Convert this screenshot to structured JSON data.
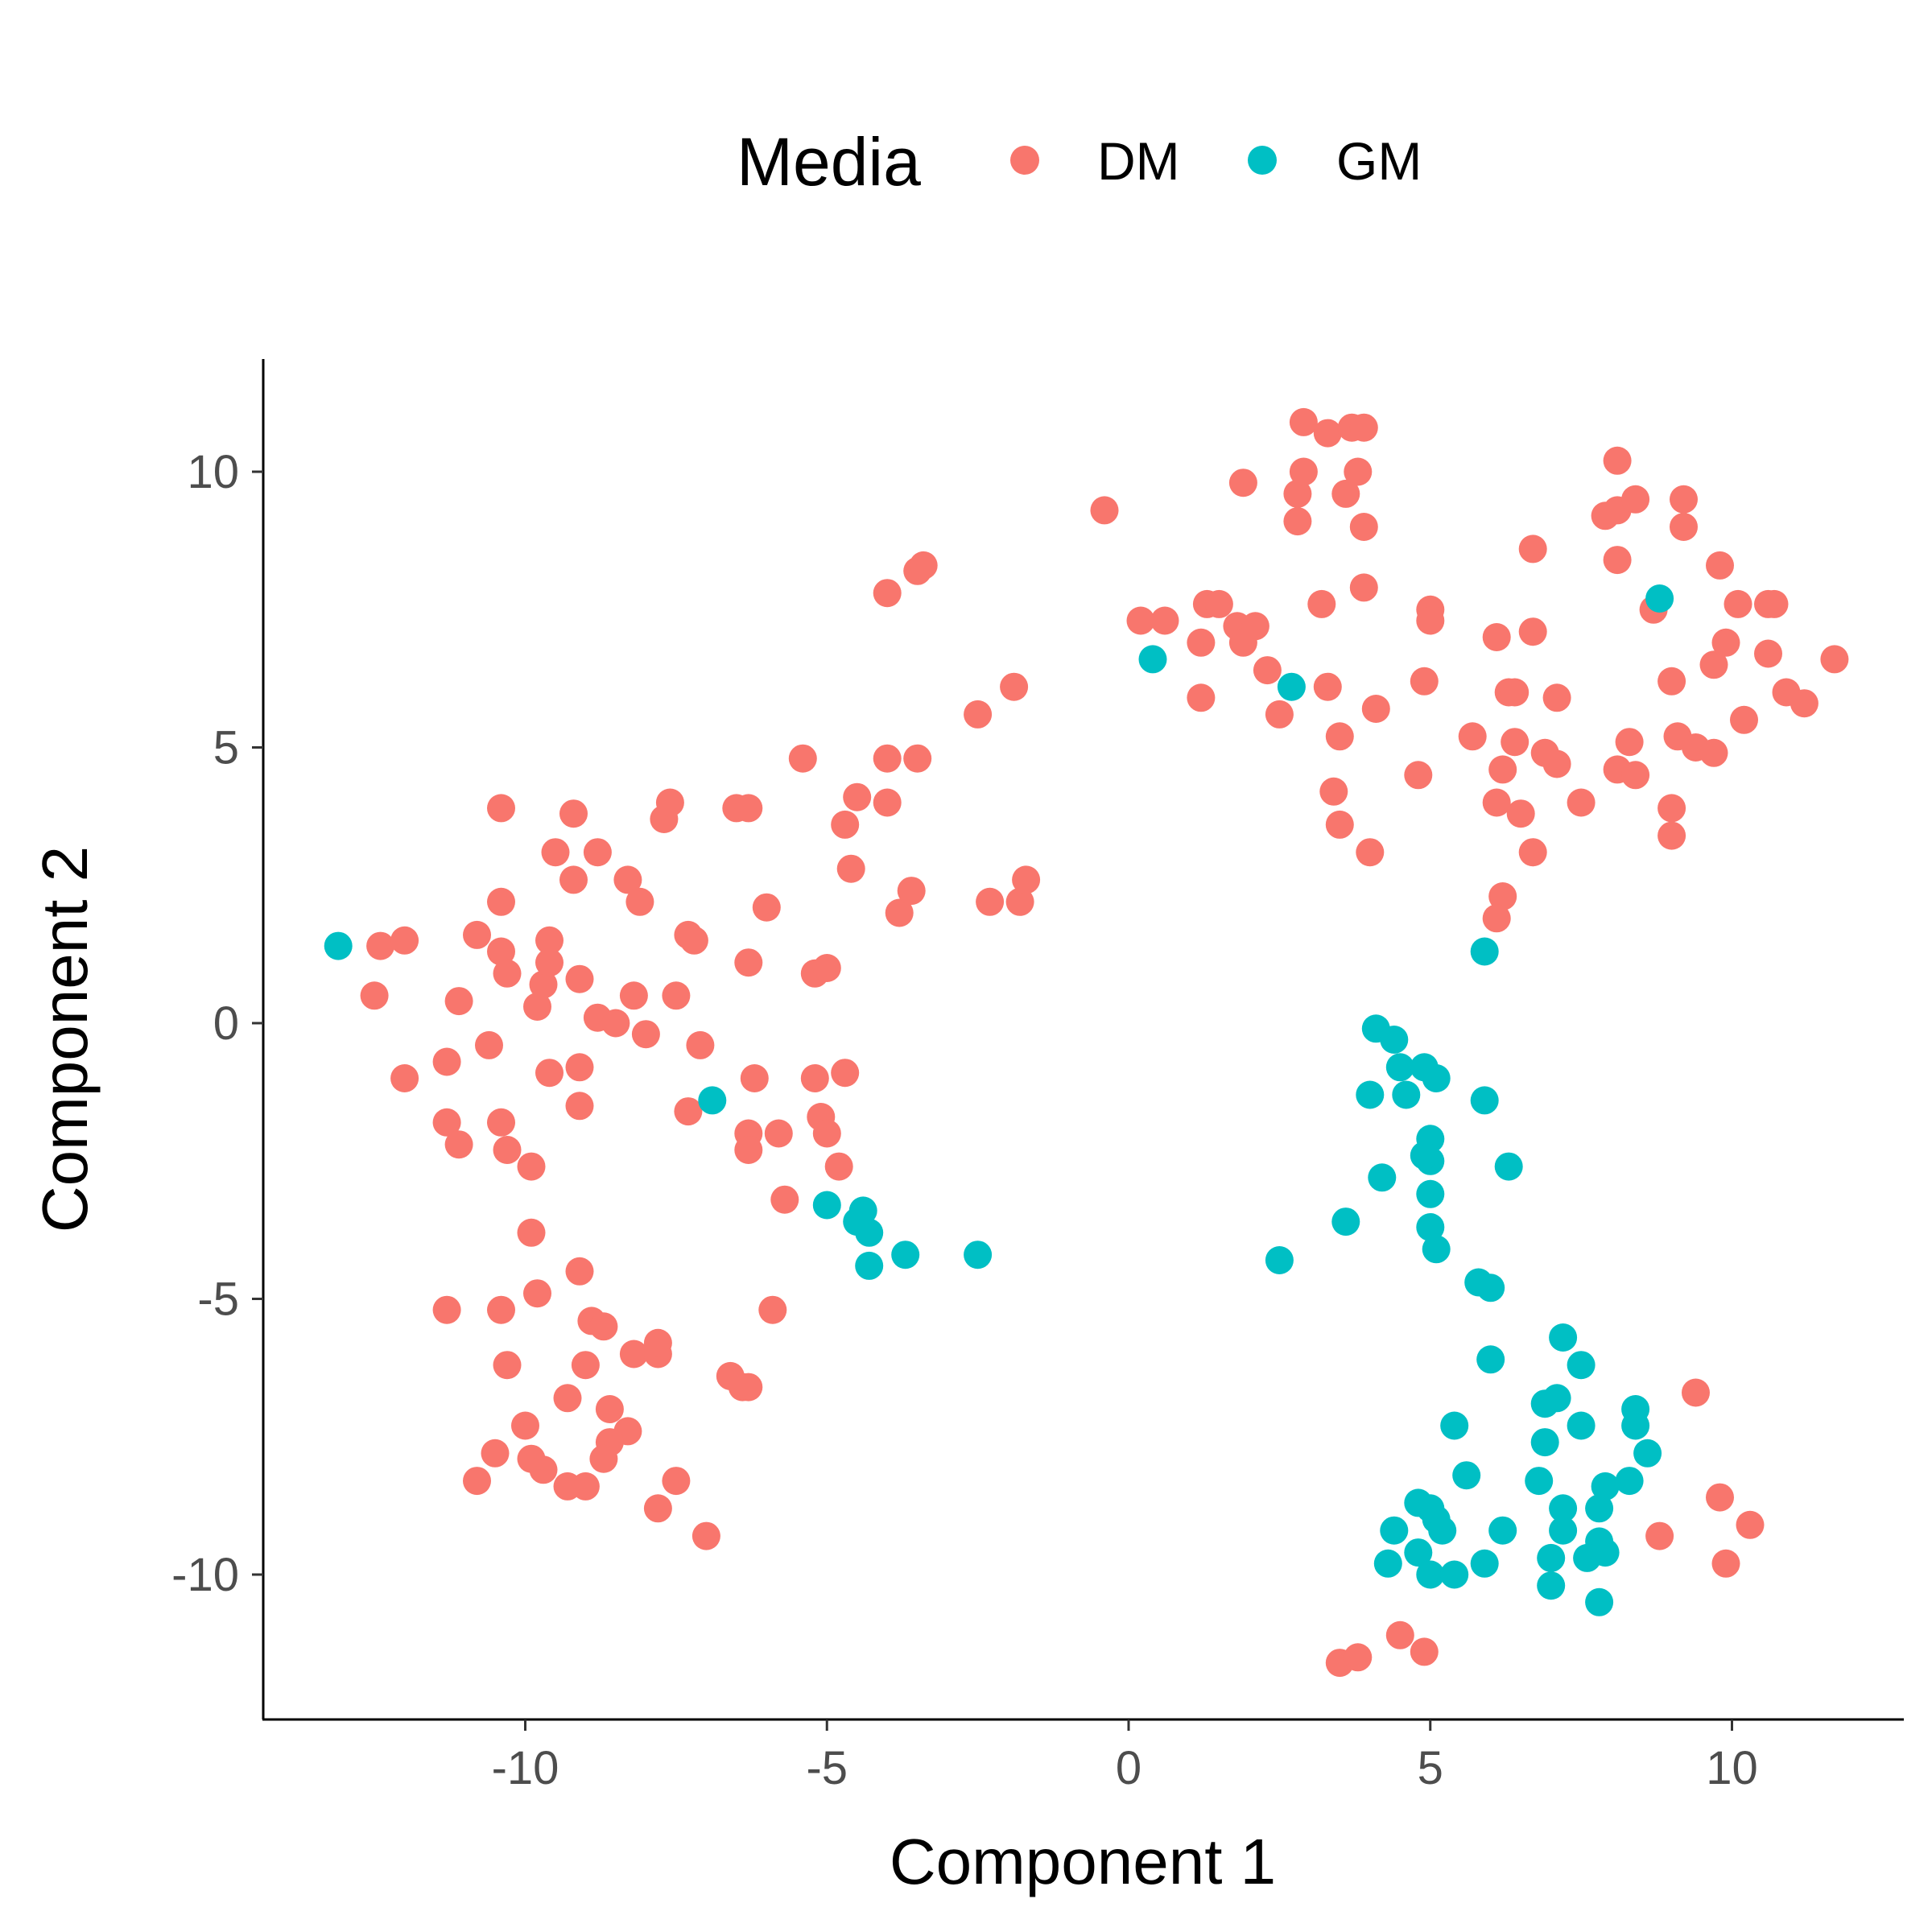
{
  "chart_data": {
    "type": "scatter",
    "title": "",
    "xlabel": "Component 1",
    "ylabel": "Component 2",
    "xlim": [
      -14.5,
      13
    ],
    "ylim": [
      -12.6,
      12.1
    ],
    "x_ticks": [
      -10,
      -5,
      0,
      5,
      10
    ],
    "y_ticks": [
      -10,
      -5,
      0,
      5,
      10
    ],
    "x_tick_labels": [
      "-10",
      "-5",
      "0",
      "5",
      "10"
    ],
    "y_tick_labels": [
      "-10",
      "-5",
      "0",
      "5",
      "10"
    ],
    "grid": false,
    "legend": {
      "title": "Media",
      "placement": "top"
    },
    "series": [
      {
        "name": "DM",
        "color": "#F8766D",
        "points": [
          [
            -12.4,
            1.4
          ],
          [
            -12.0,
            1.5
          ],
          [
            -12.5,
            0.5
          ],
          [
            -12.0,
            -1.0
          ],
          [
            -11.3,
            -0.7
          ],
          [
            -11.1,
            0.4
          ],
          [
            -11.3,
            -1.8
          ],
          [
            -11.1,
            -2.2
          ],
          [
            -10.8,
            1.6
          ],
          [
            -10.4,
            1.3
          ],
          [
            -10.3,
            0.9
          ],
          [
            -10.6,
            -0.4
          ],
          [
            -10.4,
            -1.8
          ],
          [
            -10.3,
            -2.3
          ],
          [
            -10.4,
            3.9
          ],
          [
            -10.4,
            2.2
          ],
          [
            -9.8,
            0.3
          ],
          [
            -9.7,
            0.7
          ],
          [
            -9.6,
            1.1
          ],
          [
            -9.6,
            1.5
          ],
          [
            -9.6,
            -0.9
          ],
          [
            -9.9,
            -2.6
          ],
          [
            -9.5,
            3.1
          ],
          [
            -9.2,
            3.8
          ],
          [
            -9.2,
            2.6
          ],
          [
            -9.1,
            0.8
          ],
          [
            -9.1,
            -0.8
          ],
          [
            -9.1,
            -1.5
          ],
          [
            -8.8,
            0.1
          ],
          [
            -8.8,
            3.1
          ],
          [
            -8.5,
            0.0
          ],
          [
            -8.3,
            2.6
          ],
          [
            -8.1,
            2.2
          ],
          [
            -8.2,
            0.5
          ],
          [
            -8.0,
            -0.2
          ],
          [
            -7.7,
            3.7
          ],
          [
            -7.6,
            4.0
          ],
          [
            -7.5,
            0.5
          ],
          [
            -7.3,
            1.6
          ],
          [
            -7.2,
            1.5
          ],
          [
            -7.1,
            -0.4
          ],
          [
            -7.3,
            -1.6
          ],
          [
            -6.5,
            3.9
          ],
          [
            -6.3,
            3.9
          ],
          [
            -6.3,
            1.1
          ],
          [
            -6.0,
            2.1
          ],
          [
            -6.2,
            -1.0
          ],
          [
            -6.3,
            -2.0
          ],
          [
            -6.3,
            -2.3
          ],
          [
            -5.8,
            -2.0
          ],
          [
            -5.7,
            -3.2
          ],
          [
            -5.4,
            4.8
          ],
          [
            -5.2,
            0.9
          ],
          [
            -5.0,
            1.0
          ],
          [
            -5.2,
            -1.0
          ],
          [
            -5.1,
            -1.7
          ],
          [
            -5.0,
            -2.0
          ],
          [
            -4.8,
            -2.6
          ],
          [
            -4.7,
            -0.9
          ],
          [
            -4.6,
            2.8
          ],
          [
            -4.7,
            3.6
          ],
          [
            -4.5,
            4.1
          ],
          [
            -4.0,
            7.8
          ],
          [
            -4.0,
            4.8
          ],
          [
            -4.0,
            4.0
          ],
          [
            -3.8,
            2.0
          ],
          [
            -3.6,
            2.4
          ],
          [
            -3.5,
            4.8
          ],
          [
            -3.5,
            8.2
          ],
          [
            -3.4,
            8.3
          ],
          [
            -2.5,
            5.6
          ],
          [
            -2.3,
            2.2
          ],
          [
            -1.9,
            6.1
          ],
          [
            -1.8,
            2.2
          ],
          [
            -1.7,
            2.6
          ],
          [
            -0.4,
            9.3
          ],
          [
            -9.9,
            -3.8
          ],
          [
            -10.4,
            -5.2
          ],
          [
            -9.8,
            -4.9
          ],
          [
            -9.1,
            -4.5
          ],
          [
            -11.3,
            -5.2
          ],
          [
            -10.3,
            -6.2
          ],
          [
            -8.9,
            -5.4
          ],
          [
            -8.7,
            -5.5
          ],
          [
            -9.0,
            -6.2
          ],
          [
            -8.2,
            -6.0
          ],
          [
            -7.8,
            -6.0
          ],
          [
            -7.8,
            -5.8
          ],
          [
            -6.6,
            -6.4
          ],
          [
            -6.4,
            -6.6
          ],
          [
            -6.3,
            -6.6
          ],
          [
            -5.9,
            -5.2
          ],
          [
            -10.0,
            -7.3
          ],
          [
            -9.3,
            -6.8
          ],
          [
            -8.6,
            -7.0
          ],
          [
            -8.3,
            -7.4
          ],
          [
            -8.6,
            -7.6
          ],
          [
            -8.7,
            -7.9
          ],
          [
            -10.5,
            -7.8
          ],
          [
            -10.8,
            -8.3
          ],
          [
            -9.9,
            -7.9
          ],
          [
            -9.7,
            -8.1
          ],
          [
            -9.3,
            -8.4
          ],
          [
            -9.0,
            -8.4
          ],
          [
            -7.5,
            -8.3
          ],
          [
            -7.8,
            -8.8
          ],
          [
            -7.0,
            -9.3
          ],
          [
            0.2,
            7.3
          ],
          [
            0.6,
            7.3
          ],
          [
            1.2,
            6.9
          ],
          [
            1.2,
            5.9
          ],
          [
            1.3,
            7.6
          ],
          [
            1.5,
            7.6
          ],
          [
            1.8,
            7.2
          ],
          [
            1.9,
            6.9
          ],
          [
            2.1,
            7.2
          ],
          [
            2.3,
            6.4
          ],
          [
            2.5,
            5.6
          ],
          [
            1.9,
            9.8
          ],
          [
            2.8,
            9.6
          ],
          [
            2.8,
            9.1
          ],
          [
            2.9,
            10.0
          ],
          [
            2.9,
            10.9
          ],
          [
            3.2,
            7.6
          ],
          [
            3.3,
            6.1
          ],
          [
            3.4,
            4.2
          ],
          [
            3.5,
            3.6
          ],
          [
            3.5,
            5.2
          ],
          [
            3.6,
            9.6
          ],
          [
            3.3,
            10.7
          ],
          [
            3.7,
            10.8
          ],
          [
            3.8,
            10.0
          ],
          [
            3.9,
            10.8
          ],
          [
            3.9,
            9.0
          ],
          [
            3.9,
            7.9
          ],
          [
            4.0,
            3.1
          ],
          [
            4.1,
            5.7
          ],
          [
            4.8,
            4.5
          ],
          [
            4.9,
            6.2
          ],
          [
            5.0,
            7.5
          ],
          [
            5.0,
            7.3
          ],
          [
            5.7,
            5.2
          ],
          [
            6.1,
            7.0
          ],
          [
            6.2,
            4.6
          ],
          [
            6.1,
            4.0
          ],
          [
            6.3,
            6.0
          ],
          [
            6.4,
            6.0
          ],
          [
            6.4,
            5.1
          ],
          [
            6.5,
            3.8
          ],
          [
            6.7,
            3.1
          ],
          [
            6.9,
            4.9
          ],
          [
            6.7,
            7.1
          ],
          [
            6.7,
            8.6
          ],
          [
            7.1,
            4.7
          ],
          [
            7.1,
            5.9
          ],
          [
            7.5,
            4.0
          ],
          [
            6.2,
            2.3
          ],
          [
            6.1,
            1.9
          ],
          [
            7.9,
            9.2
          ],
          [
            8.1,
            8.4
          ],
          [
            8.1,
            10.2
          ],
          [
            8.1,
            9.3
          ],
          [
            8.4,
            9.5
          ],
          [
            8.3,
            5.1
          ],
          [
            8.1,
            4.6
          ],
          [
            8.4,
            4.5
          ],
          [
            8.7,
            7.5
          ],
          [
            9.0,
            6.2
          ],
          [
            9.1,
            5.2
          ],
          [
            9.0,
            3.9
          ],
          [
            9.0,
            3.4
          ],
          [
            9.2,
            9.0
          ],
          [
            9.2,
            9.5
          ],
          [
            9.8,
            8.3
          ],
          [
            9.7,
            6.5
          ],
          [
            9.9,
            6.9
          ],
          [
            10.1,
            7.6
          ],
          [
            9.4,
            5.0
          ],
          [
            9.7,
            4.9
          ],
          [
            10.2,
            5.5
          ],
          [
            10.6,
            6.7
          ],
          [
            10.6,
            7.6
          ],
          [
            10.7,
            7.6
          ],
          [
            10.9,
            6.0
          ],
          [
            11.2,
            5.8
          ],
          [
            11.7,
            6.6
          ],
          [
            9.4,
            -6.7
          ],
          [
            9.8,
            -8.6
          ],
          [
            10.3,
            -9.1
          ],
          [
            9.9,
            -9.8
          ],
          [
            8.8,
            -9.3
          ],
          [
            3.5,
            -11.6
          ],
          [
            3.8,
            -11.5
          ],
          [
            4.5,
            -11.1
          ],
          [
            4.9,
            -11.4
          ]
        ]
      },
      {
        "name": "GM",
        "color": "#00BFC4",
        "points": [
          [
            -13.1,
            1.4
          ],
          [
            -6.9,
            -1.4
          ],
          [
            -5.0,
            -3.3
          ],
          [
            -4.5,
            -3.6
          ],
          [
            -4.4,
            -3.4
          ],
          [
            -4.3,
            -3.8
          ],
          [
            -4.3,
            -4.4
          ],
          [
            -3.7,
            -4.2
          ],
          [
            -2.5,
            -4.2
          ],
          [
            0.4,
            6.6
          ],
          [
            2.7,
            6.1
          ],
          [
            8.8,
            7.7
          ],
          [
            5.9,
            1.3
          ],
          [
            4.1,
            -0.1
          ],
          [
            4.4,
            -0.3
          ],
          [
            4.5,
            -0.8
          ],
          [
            4.9,
            -0.8
          ],
          [
            5.1,
            -1.0
          ],
          [
            4.0,
            -1.3
          ],
          [
            4.6,
            -1.3
          ],
          [
            5.9,
            -1.4
          ],
          [
            5.0,
            -2.1
          ],
          [
            5.0,
            -2.5
          ],
          [
            4.9,
            -2.4
          ],
          [
            6.3,
            -2.6
          ],
          [
            4.2,
            -2.8
          ],
          [
            5.0,
            -3.1
          ],
          [
            3.6,
            -3.6
          ],
          [
            5.0,
            -3.7
          ],
          [
            2.5,
            -4.3
          ],
          [
            5.1,
            -4.1
          ],
          [
            5.8,
            -4.7
          ],
          [
            6.0,
            -4.8
          ],
          [
            6.0,
            -6.1
          ],
          [
            7.2,
            -5.7
          ],
          [
            7.5,
            -6.2
          ],
          [
            6.9,
            -6.9
          ],
          [
            7.1,
            -6.8
          ],
          [
            8.4,
            -7.0
          ],
          [
            8.4,
            -7.3
          ],
          [
            7.5,
            -7.3
          ],
          [
            5.4,
            -7.3
          ],
          [
            6.9,
            -7.6
          ],
          [
            8.6,
            -7.8
          ],
          [
            5.6,
            -8.2
          ],
          [
            6.8,
            -8.3
          ],
          [
            7.9,
            -8.4
          ],
          [
            8.3,
            -8.3
          ],
          [
            4.8,
            -8.7
          ],
          [
            5.0,
            -8.8
          ],
          [
            7.2,
            -8.8
          ],
          [
            7.8,
            -8.8
          ],
          [
            5.1,
            -9.0
          ],
          [
            7.2,
            -9.2
          ],
          [
            4.4,
            -9.2
          ],
          [
            5.2,
            -9.2
          ],
          [
            6.2,
            -9.2
          ],
          [
            7.8,
            -9.4
          ],
          [
            4.8,
            -9.6
          ],
          [
            7.0,
            -9.7
          ],
          [
            7.6,
            -9.7
          ],
          [
            7.9,
            -9.6
          ],
          [
            4.3,
            -9.8
          ],
          [
            5.0,
            -10.0
          ],
          [
            5.4,
            -10.0
          ],
          [
            5.9,
            -9.8
          ],
          [
            7.0,
            -10.2
          ],
          [
            7.8,
            -10.5
          ]
        ]
      }
    ]
  }
}
